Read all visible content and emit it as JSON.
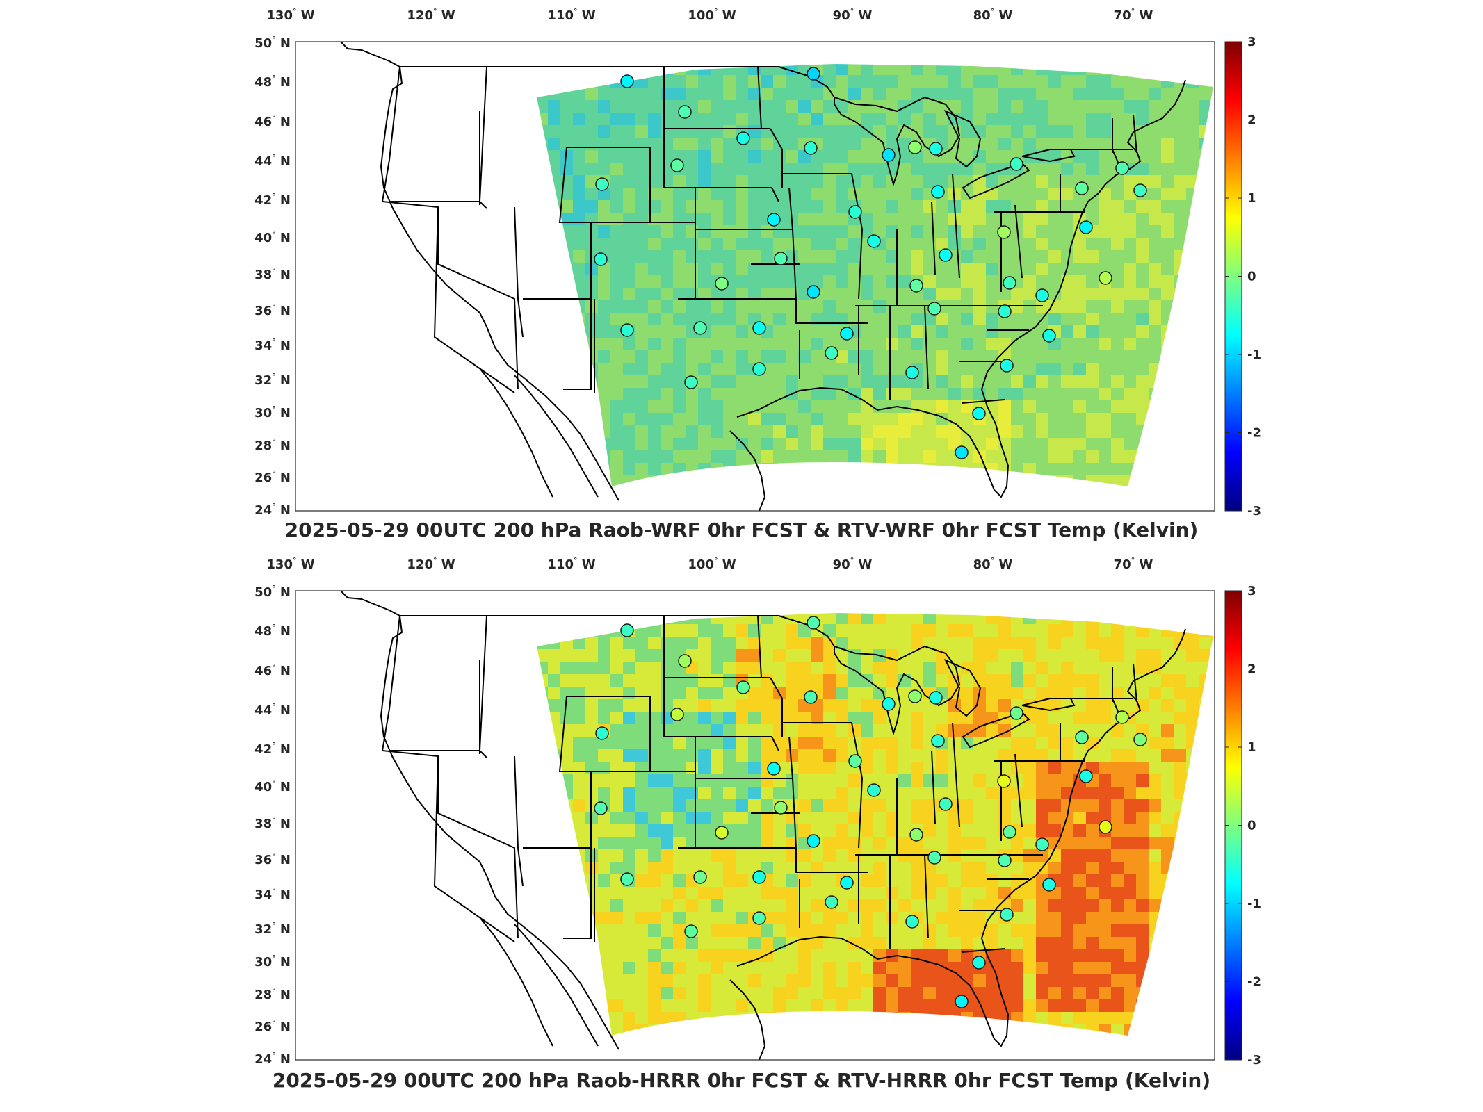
{
  "figure": {
    "panels": [
      {
        "id": "wrf",
        "title": "2025-05-29 00UTC 200 hPa Raob-WRF 0hr FCST & RTV-WRF 0hr FCST Temp (Kelvin)",
        "field_style": "mostly near-zero (green/cyan) with slight warm bias in the southeast",
        "field_palette": [
          "#3cc8c8",
          "#5fd39a",
          "#8fdc6e",
          "#c6e84a",
          "#e8ec3a"
        ],
        "station_values": [
          -0.8,
          -1.0,
          -0.3,
          -0.6,
          -0.2,
          -0.4,
          0.1,
          -0.5,
          -0.6,
          -0.9,
          -0.7,
          -0.4,
          -0.3,
          -0.8,
          -0.5,
          -0.6,
          -0.2,
          -0.4,
          -0.7,
          0.2,
          -0.8,
          -0.3,
          -0.5,
          0.0,
          -0.9,
          -0.3,
          -0.6,
          -0.4,
          0.3,
          -0.2,
          -0.6,
          -0.5,
          -0.8,
          -0.4,
          -0.3,
          -0.7,
          -0.6,
          -0.5,
          -0.4,
          -0.6,
          -0.5,
          -0.7,
          -0.9
        ]
      },
      {
        "id": "hrrr",
        "title": "2025-05-29 00UTC 200 hPa Raob-HRRR 0hr FCST & RTV-HRRR 0hr FCST Temp (Kelvin)",
        "field_style": "near-zero with pronounced warm (orange/red) bias across the southeast and upper midwest, cool patches in the central plains",
        "field_palette": [
          "#3fc8d8",
          "#7fdc7a",
          "#d7ea3a",
          "#f7d21e",
          "#f6951a",
          "#e8541a"
        ],
        "station_values": [
          -0.4,
          -0.3,
          0.2,
          -0.2,
          0.4,
          -0.5,
          0.1,
          -0.3,
          -0.6,
          -0.6,
          -0.5,
          -0.1,
          0.3,
          -0.7,
          -0.2,
          -0.5,
          -0.2,
          0.0,
          -0.4,
          0.6,
          -0.6,
          0.1,
          -0.3,
          0.5,
          -0.8,
          -0.3,
          -0.4,
          -0.2,
          0.6,
          0.1,
          -0.6,
          -0.3,
          -0.7,
          -0.4,
          -0.1,
          -0.6,
          -0.4,
          -0.3,
          -0.2,
          -0.5,
          -0.3,
          -0.6,
          -0.8
        ]
      }
    ],
    "lon_ticks": [
      "130° W",
      "120° W",
      "110° W",
      "100° W",
      "90° W",
      "80° W",
      "70° W"
    ],
    "lat_ticks": [
      "50° N",
      "48° N",
      "46° N",
      "44° N",
      "42° N",
      "40° N",
      "38° N",
      "36° N",
      "34° N",
      "32° N",
      "30° N",
      "28° N",
      "26° N",
      "24° N"
    ],
    "colorbar": {
      "ticks": [
        "3",
        "2",
        "1",
        "0",
        "-1",
        "-2",
        "-3"
      ],
      "range": [
        -3,
        3
      ],
      "colormap": "jet",
      "stops": [
        "#00007f",
        "#0000ff",
        "#007fff",
        "#00ffff",
        "#7fff7f",
        "#ffff00",
        "#ff7f00",
        "#ff0000",
        "#7f0000"
      ]
    },
    "stations": {
      "count": 43,
      "marker": "filled circle outlined in black, colored by Raob-minus-model difference"
    }
  }
}
